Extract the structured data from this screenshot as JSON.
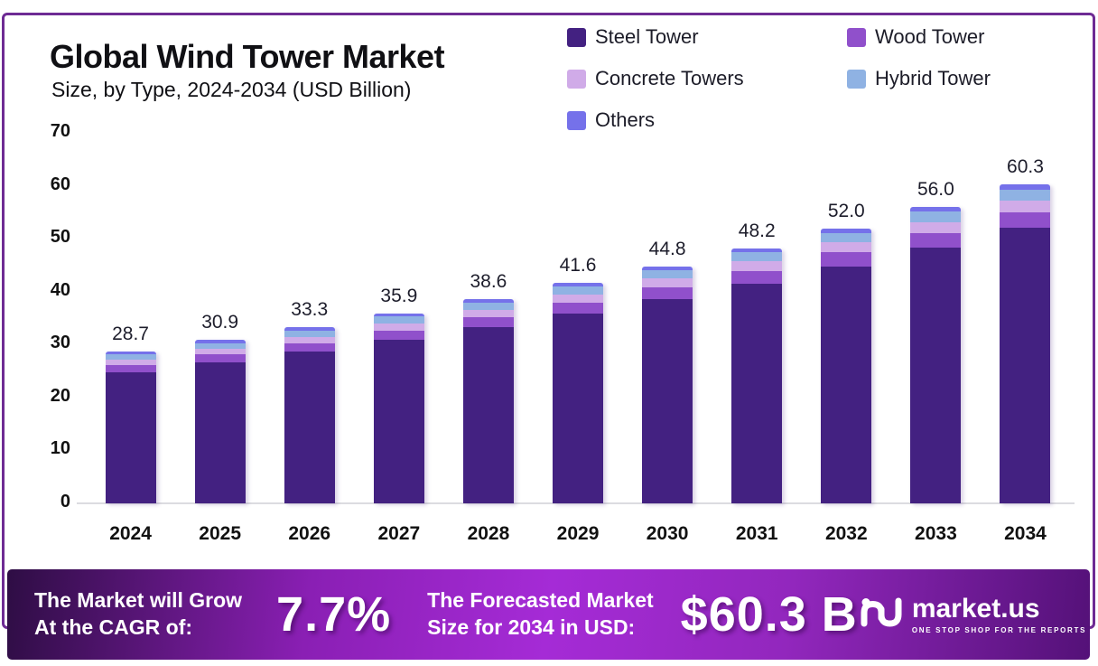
{
  "header": {
    "title": "Global Wind Tower Market",
    "subtitle": "Size, by Type, 2024-2034 (USD Billion)"
  },
  "legend": {
    "items": [
      {
        "label": "Steel Tower",
        "color": "#432181"
      },
      {
        "label": "Wood Tower",
        "color": "#9050cb"
      },
      {
        "label": "Concrete Towers",
        "color": "#d0abe8"
      },
      {
        "label": "Hybrid Tower",
        "color": "#8fb2e3"
      },
      {
        "label": "Others",
        "color": "#7571ea"
      }
    ]
  },
  "chart_data": {
    "type": "bar",
    "stacked": true,
    "title": "Global Wind Tower Market Size, by Type, 2024-2034 (USD Billion)",
    "xlabel": "",
    "ylabel": "",
    "ylim": [
      0,
      70
    ],
    "yticks": [
      0,
      10,
      20,
      30,
      40,
      50,
      60,
      70
    ],
    "grid": false,
    "legend_position": "top-right",
    "categories": [
      "2024",
      "2025",
      "2026",
      "2027",
      "2028",
      "2029",
      "2030",
      "2031",
      "2032",
      "2033",
      "2034"
    ],
    "totals": [
      "28.7",
      "30.9",
      "33.3",
      "35.9",
      "38.6",
      "41.6",
      "44.8",
      "48.2",
      "52.0",
      "56.0",
      "60.3"
    ],
    "series": [
      {
        "name": "Steel Tower",
        "color": "#432181",
        "values": [
          24.7,
          26.6,
          28.7,
          30.9,
          33.3,
          35.9,
          38.6,
          41.5,
          44.8,
          48.3,
          52.0
        ]
      },
      {
        "name": "Wood Tower",
        "color": "#9050cb",
        "values": [
          1.4,
          1.5,
          1.6,
          1.8,
          1.9,
          2.0,
          2.2,
          2.4,
          2.6,
          2.7,
          2.9
        ]
      },
      {
        "name": "Concrete Towers",
        "color": "#d0abe8",
        "values": [
          1.1,
          1.1,
          1.2,
          1.3,
          1.4,
          1.5,
          1.7,
          1.8,
          1.9,
          2.1,
          2.3
        ]
      },
      {
        "name": "Hybrid Tower",
        "color": "#8fb2e3",
        "values": [
          1.0,
          1.1,
          1.2,
          1.3,
          1.4,
          1.5,
          1.6,
          1.7,
          1.8,
          2.0,
          2.1
        ]
      },
      {
        "name": "Others",
        "color": "#7571ea",
        "values": [
          0.5,
          0.6,
          0.6,
          0.6,
          0.6,
          0.7,
          0.7,
          0.8,
          0.9,
          0.9,
          1.0
        ]
      }
    ]
  },
  "banner": {
    "cagr_label_line1": "The Market will Grow",
    "cagr_label_line2": "At the CAGR of:",
    "cagr_value": "7.7%",
    "forecast_label_line1": "The Forecasted Market",
    "forecast_label_line2": "Size for 2034 in USD:",
    "forecast_value": "$60.3 B",
    "brand": {
      "name": "market.us",
      "tagline": "ONE STOP SHOP FOR THE REPORTS"
    }
  },
  "colors": {
    "frame_border": "#6e2b94",
    "axis_line": "#dcdce0",
    "banner_gradient_start": "#2e0d44",
    "banner_gradient_mid": "#a52bd6",
    "banner_gradient_end": "#541178"
  }
}
